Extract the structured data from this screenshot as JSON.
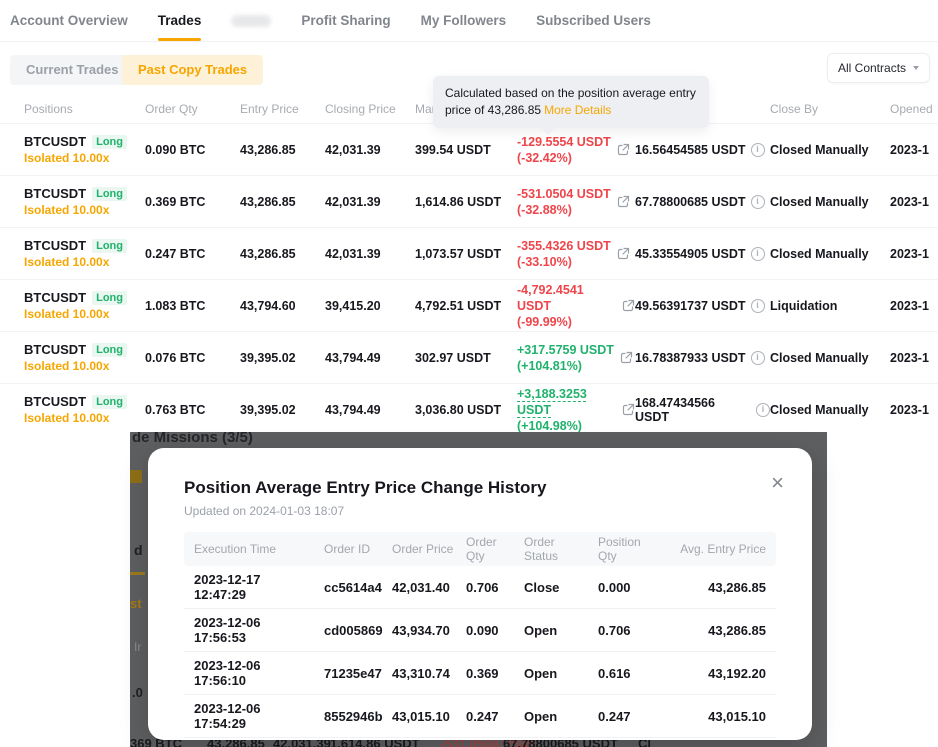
{
  "colors": {
    "accent": "#f7a600",
    "loss_red": "#ef454a",
    "gain_green": "#20b26c"
  },
  "nav": {
    "tabs": [
      {
        "label": "Account Overview",
        "active": false
      },
      {
        "label": "Trades",
        "active": true
      },
      {
        "label": "Profit Sharing",
        "active": false
      },
      {
        "label": "My Followers",
        "active": false
      },
      {
        "label": "Subscribed Users",
        "active": false
      }
    ]
  },
  "filters": {
    "current": "Current Trades",
    "past": "Past Copy Trades",
    "contracts": "All Contracts"
  },
  "tooltip": {
    "text": "Calculated based on the position average entry price of 43,286.85",
    "link": "More Details"
  },
  "table": {
    "headers": [
      "Positions",
      "Order Qty",
      "Entry Price",
      "Closing Price",
      "Margin",
      "",
      "",
      "Close By",
      "Opened"
    ],
    "rows": [
      {
        "symbol": "BTCUSDT",
        "side": "Long",
        "leverage": "Isolated 10.00x",
        "qty": "0.090 BTC",
        "entry": "43,286.85",
        "closing": "42,031.39",
        "margin": "399.54 USDT",
        "pnl_value": "-129.5554 USDT",
        "pnl_pct": "(-32.42%)",
        "pnl_dir": "loss",
        "pnl_dashed": false,
        "income": "16.56454585 USDT",
        "close_by": "Closed Manually",
        "opened": "2023-1"
      },
      {
        "symbol": "BTCUSDT",
        "side": "Long",
        "leverage": "Isolated 10.00x",
        "qty": "0.369 BTC",
        "entry": "43,286.85",
        "closing": "42,031.39",
        "margin": "1,614.86 USDT",
        "pnl_value": "-531.0504 USDT",
        "pnl_pct": "(-32.88%)",
        "pnl_dir": "loss",
        "pnl_dashed": false,
        "income": "67.78800685 USDT",
        "close_by": "Closed Manually",
        "opened": "2023-1"
      },
      {
        "symbol": "BTCUSDT",
        "side": "Long",
        "leverage": "Isolated 10.00x",
        "qty": "0.247 BTC",
        "entry": "43,286.85",
        "closing": "42,031.39",
        "margin": "1,073.57 USDT",
        "pnl_value": "-355.4326 USDT",
        "pnl_pct": "(-33.10%)",
        "pnl_dir": "loss",
        "pnl_dashed": false,
        "income": "45.33554905 USDT",
        "close_by": "Closed Manually",
        "opened": "2023-1"
      },
      {
        "symbol": "BTCUSDT",
        "side": "Long",
        "leverage": "Isolated 10.00x",
        "qty": "1.083 BTC",
        "entry": "43,794.60",
        "closing": "39,415.20",
        "margin": "4,792.51 USDT",
        "pnl_value": "-4,792.4541 USDT",
        "pnl_pct": "(-99.99%)",
        "pnl_dir": "loss",
        "pnl_dashed": false,
        "income": "49.56391737 USDT",
        "close_by": "Liquidation",
        "opened": "2023-1"
      },
      {
        "symbol": "BTCUSDT",
        "side": "Long",
        "leverage": "Isolated 10.00x",
        "qty": "0.076 BTC",
        "entry": "39,395.02",
        "closing": "43,794.49",
        "margin": "302.97 USDT",
        "pnl_value": "+317.5759 USDT",
        "pnl_pct": "(+104.81%)",
        "pnl_dir": "gain",
        "pnl_dashed": false,
        "income": "16.78387933 USDT",
        "close_by": "Closed Manually",
        "opened": "2023-1"
      },
      {
        "symbol": "BTCUSDT",
        "side": "Long",
        "leverage": "Isolated 10.00x",
        "qty": "0.763 BTC",
        "entry": "39,395.02",
        "closing": "43,794.49",
        "margin": "3,036.80 USDT",
        "pnl_value": "+3,188.3253 USDT",
        "pnl_pct": "(+104.98%)",
        "pnl_dir": "gain",
        "pnl_dashed": true,
        "income": "168.47434566 USDT",
        "close_by": "Closed Manually",
        "opened": "2023-1"
      }
    ]
  },
  "modal": {
    "title": "Position Average Entry Price Change History",
    "updated": "Updated on 2024-01-03 18:07",
    "close": "×",
    "headers": [
      "Execution Time",
      "Order ID",
      "Order Price",
      "Order Qty",
      "Order Status",
      "Position Qty",
      "Avg. Entry Price"
    ],
    "rows": [
      [
        "2023-12-17 12:47:29",
        "cc5614a4",
        "42,031.40",
        "0.706",
        "Close",
        "0.000",
        "43,286.85"
      ],
      [
        "2023-12-06 17:56:53",
        "cd005869",
        "43,934.70",
        "0.090",
        "Open",
        "0.706",
        "43,286.85"
      ],
      [
        "2023-12-06 17:56:10",
        "71235e47",
        "43,310.74",
        "0.369",
        "Open",
        "0.616",
        "43,192.20"
      ],
      [
        "2023-12-06 17:54:29",
        "8552946b",
        "43,015.10",
        "0.247",
        "Open",
        "0.247",
        "43,015.10"
      ]
    ]
  },
  "background": {
    "top_fragment": "de Missions (3/5)",
    "left_bits": {
      "b1": "d",
      "b2": "st",
      "b3": "Ir",
      "b4": ".0"
    },
    "bottom_row": [
      "369 BTC",
      "43,286.85",
      "42,031.39",
      "1,614.86 USDT",
      "-531.0504 USDT",
      "67.78800685 USDT",
      "Cl"
    ]
  }
}
